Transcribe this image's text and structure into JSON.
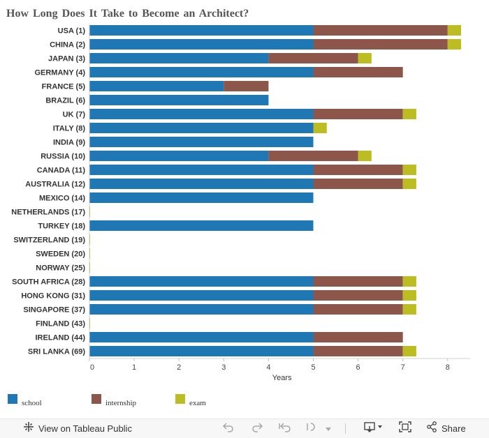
{
  "title": "How Long Does It Take to Become an Architect?",
  "chart_data": {
    "type": "bar",
    "orientation": "horizontal",
    "stacked": true,
    "categories": [
      "USA (1)",
      "CHINA (2)",
      "JAPAN (3)",
      "GERMANY (4)",
      "FRANCE (5)",
      "BRAZIL (6)",
      "UK (7)",
      "ITALY (8)",
      "INDIA (9)",
      "RUSSIA (10)",
      "CANADA (11)",
      "AUSTRALIA (12)",
      "MEXICO (14)",
      "NETHERLANDS (17)",
      "TURKEY (18)",
      "SWITZERLAND (19)",
      "SWEDEN (20)",
      "NORWAY (25)",
      "SOUTH AFRICA (28)",
      "HONG KONG (31)",
      "SINGAPORE (37)",
      "FINLAND (43)",
      "IRELAND (44)",
      "SRI LANKA (69)"
    ],
    "series": [
      {
        "name": "school",
        "color": "#1f77b4",
        "values": [
          5,
          5,
          4,
          5,
          3,
          4,
          5,
          5,
          5,
          4,
          5,
          5,
          5,
          0,
          5,
          0,
          0,
          0,
          5,
          5,
          5,
          0,
          5,
          5
        ]
      },
      {
        "name": "internship",
        "color": "#8c564b",
        "values": [
          3,
          3,
          2,
          2,
          1,
          0,
          2,
          0,
          0,
          2,
          2,
          2,
          0,
          0,
          0,
          0,
          0,
          0,
          2,
          2,
          2,
          0,
          2,
          2
        ]
      },
      {
        "name": "exam",
        "color": "#bcbd22",
        "values": [
          0.3,
          0.3,
          0.3,
          0,
          0,
          0,
          0.3,
          0.3,
          0,
          0.3,
          0.3,
          0.3,
          0,
          0,
          0,
          0,
          0,
          0,
          0.3,
          0.3,
          0.3,
          0,
          0,
          0.3
        ]
      }
    ],
    "xlabel": "Years",
    "xlim": [
      0,
      8.5
    ],
    "xticks": [
      "0",
      "1",
      "2",
      "3",
      "4",
      "5",
      "6",
      "7",
      "8"
    ],
    "grid": false,
    "legend_position": "bottom"
  },
  "legend": [
    {
      "label": "school",
      "color": "#1f77b4"
    },
    {
      "label": "internship",
      "color": "#8c564b"
    },
    {
      "label": "exam",
      "color": "#bcbd22"
    }
  ],
  "toolbar": {
    "view_label": "View on Tableau Public",
    "share_label": "Share",
    "view_icon": "tableau-logo-icon",
    "undo_icon": "undo-icon",
    "redo_icon": "redo-icon",
    "revert_icon": "revert-icon",
    "pause_icon": "dropdown-caret-icon",
    "download_icon": "download-icon",
    "fullscreen_icon": "fullscreen-icon",
    "share_icon": "share-icon"
  }
}
